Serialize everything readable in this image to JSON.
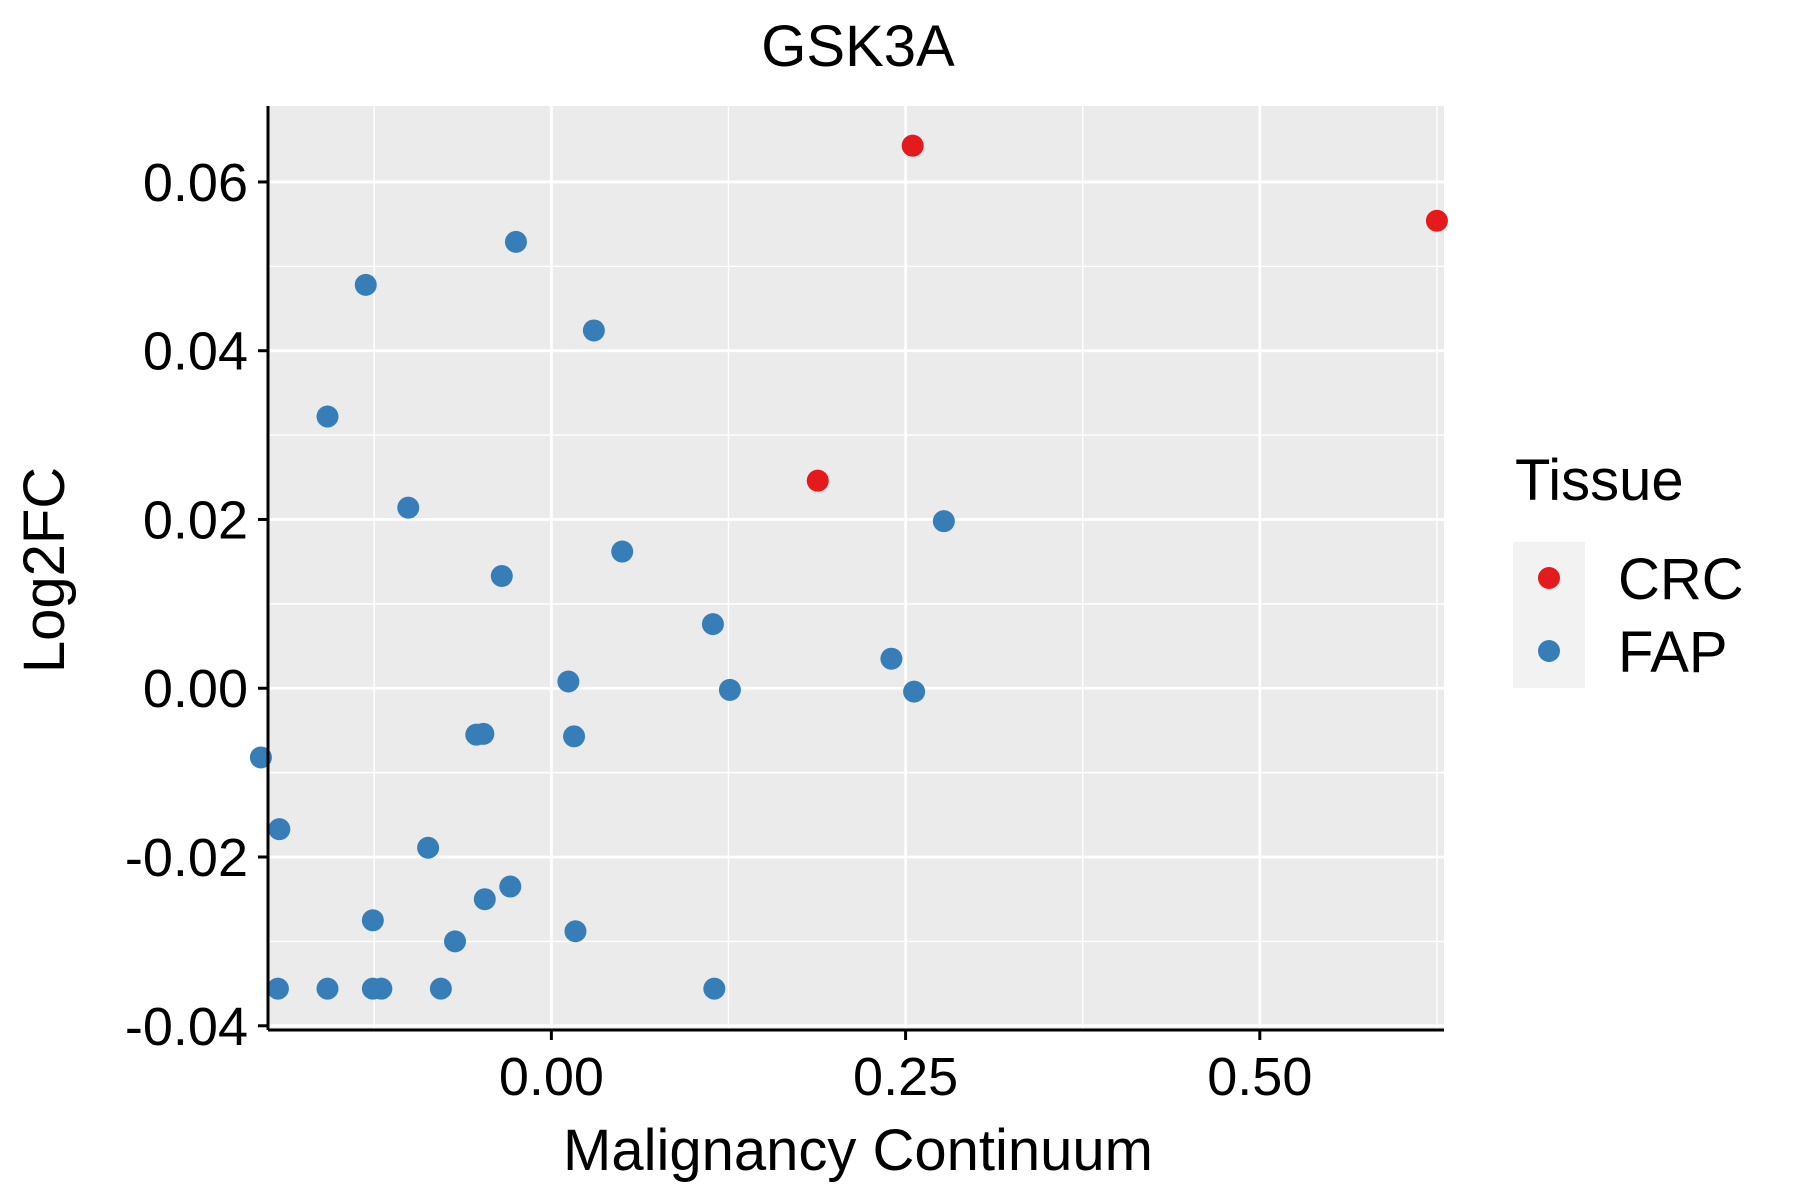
{
  "chart_data": {
    "type": "scatter",
    "title": "GSK3A",
    "xlabel": "Malignancy Continuum",
    "ylabel": "Log2FC",
    "xlim": [
      -0.2,
      0.63
    ],
    "ylim": [
      -0.0405,
      0.069
    ],
    "x_ticks": [
      0.0,
      0.25,
      0.5
    ],
    "x_tick_labels": [
      "0.00",
      "0.25",
      "0.50"
    ],
    "y_ticks": [
      -0.04,
      -0.02,
      0.0,
      0.02,
      0.04,
      0.06
    ],
    "y_tick_labels": [
      "-0.04",
      "-0.02",
      "0.00",
      "0.02",
      "0.04",
      "0.06"
    ],
    "grid": true,
    "legend_title": "Tissue",
    "legend_position": "right",
    "series": [
      {
        "name": "CRC",
        "color": "#E41A1C",
        "points": [
          {
            "x": 0.255,
            "y": 0.0643
          },
          {
            "x": 0.625,
            "y": 0.0554
          },
          {
            "x": 0.188,
            "y": 0.0246
          }
        ]
      },
      {
        "name": "FAP",
        "color": "#377EB8",
        "points": [
          {
            "x": -0.025,
            "y": 0.0529
          },
          {
            "x": -0.131,
            "y": 0.0478
          },
          {
            "x": 0.03,
            "y": 0.0424
          },
          {
            "x": -0.158,
            "y": 0.0322
          },
          {
            "x": -0.101,
            "y": 0.0214
          },
          {
            "x": 0.277,
            "y": 0.0198
          },
          {
            "x": 0.05,
            "y": 0.0162
          },
          {
            "x": -0.035,
            "y": 0.0133
          },
          {
            "x": 0.114,
            "y": 0.0076
          },
          {
            "x": 0.24,
            "y": 0.0035
          },
          {
            "x": 0.012,
            "y": 0.0008
          },
          {
            "x": 0.126,
            "y": -0.0002
          },
          {
            "x": 0.256,
            "y": -0.0004
          },
          {
            "x": -0.053,
            "y": -0.0055
          },
          {
            "x": -0.048,
            "y": -0.0054
          },
          {
            "x": 0.016,
            "y": -0.0057
          },
          {
            "x": -0.205,
            "y": -0.0082
          },
          {
            "x": -0.192,
            "y": -0.0167
          },
          {
            "x": -0.087,
            "y": -0.0189
          },
          {
            "x": -0.029,
            "y": -0.0235
          },
          {
            "x": -0.047,
            "y": -0.025
          },
          {
            "x": -0.126,
            "y": -0.0275
          },
          {
            "x": 0.017,
            "y": -0.0288
          },
          {
            "x": -0.068,
            "y": -0.03
          },
          {
            "x": -0.193,
            "y": -0.0356
          },
          {
            "x": -0.158,
            "y": -0.0356
          },
          {
            "x": -0.126,
            "y": -0.0356
          },
          {
            "x": -0.12,
            "y": -0.0356
          },
          {
            "x": -0.078,
            "y": -0.0356
          },
          {
            "x": 0.115,
            "y": -0.0356
          }
        ]
      }
    ]
  }
}
